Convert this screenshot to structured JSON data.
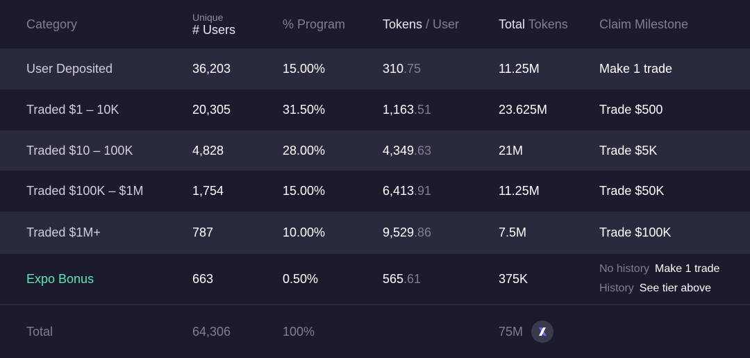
{
  "header": {
    "category": "Category",
    "users_sub": "Unique",
    "users": "# Users",
    "program": "% Program",
    "tpu_a": "Tokens",
    "tpu_b": " / User",
    "total_a": "Total",
    "total_b": " Tokens",
    "milestone": "Claim Milestone"
  },
  "rows": [
    {
      "category": "User Deposited",
      "users": "36,203",
      "program": "15.00%",
      "tpu_int": "310",
      "tpu_dec": ".75",
      "total": "11.25M",
      "milestone": "Make 1 trade"
    },
    {
      "category": "Traded $1 – 10K",
      "users": "20,305",
      "program": "31.50%",
      "tpu_int": "1,163",
      "tpu_dec": ".51",
      "total": "23.625M",
      "milestone": "Trade $500"
    },
    {
      "category": "Traded $10 – 100K",
      "users": "4,828",
      "program": "28.00%",
      "tpu_int": "4,349",
      "tpu_dec": ".63",
      "total": "21M",
      "milestone": "Trade $5K"
    },
    {
      "category": "Traded $100K – $1M",
      "users": "1,754",
      "program": "15.00%",
      "tpu_int": "6,413",
      "tpu_dec": ".91",
      "total": "11.25M",
      "milestone": "Trade $50K"
    },
    {
      "category": "Traded $1M+",
      "users": "787",
      "program": "10.00%",
      "tpu_int": "9,529",
      "tpu_dec": ".86",
      "total": "7.5M",
      "milestone": "Trade $100K"
    }
  ],
  "expo": {
    "category": "Expo Bonus",
    "users": "663",
    "program": "0.50%",
    "tpu_int": "565",
    "tpu_dec": ".61",
    "total": "375K",
    "milestones": [
      {
        "label": "No history",
        "value": "Make 1 trade"
      },
      {
        "label": "History",
        "value": "See tier above"
      }
    ]
  },
  "total": {
    "label": "Total",
    "users": "64,306",
    "program": "100%",
    "tokens": "75M",
    "token_icon": "dydx-token-icon"
  },
  "colors": {
    "background": "#1c1b2d",
    "row_alt": "#2a2a3e",
    "accent_green": "#5ee6b4",
    "muted": "#7f7e95",
    "token_purple": "#6966ff"
  }
}
